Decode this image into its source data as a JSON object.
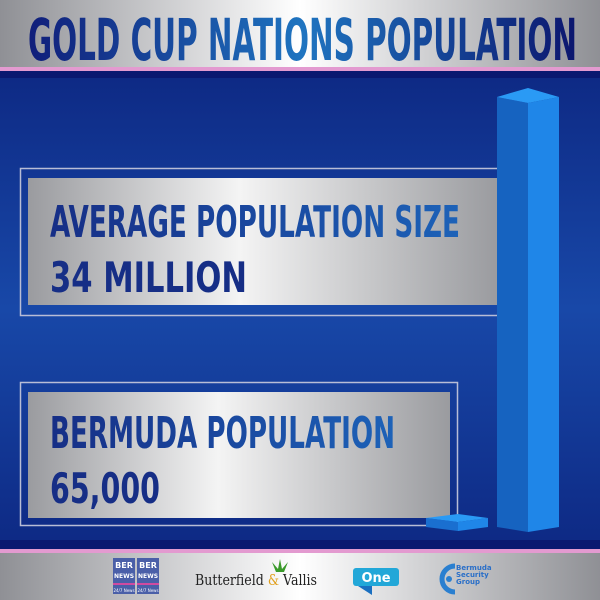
{
  "header": {
    "title": "GOLD CUP NATIONS POPULATION"
  },
  "panels": [
    {
      "label": "AVERAGE POPULATION SIZE",
      "value": "34 MILLION"
    },
    {
      "label": "BERMUDA POPULATION",
      "value": "65,000"
    }
  ],
  "bars": [
    {
      "represents": "AVERAGE POPULATION SIZE",
      "value": 34000000
    },
    {
      "represents": "BERMUDA POPULATION",
      "value": 65000
    }
  ],
  "sponsors": {
    "bernews": {
      "top": "BER",
      "middle": "NEWS",
      "bottom": "24/7 News"
    },
    "butterfield_left": "Butterfield ",
    "butterfield_amp": "&",
    "butterfield_right": " Vallis",
    "one": "One",
    "bsg": [
      "Bermuda",
      "Security",
      "Group"
    ]
  },
  "colors": {
    "navy": "#0e2a85",
    "title": "#14308f",
    "accent_pink": "#e39ad0",
    "bar": "#1f86e8"
  }
}
